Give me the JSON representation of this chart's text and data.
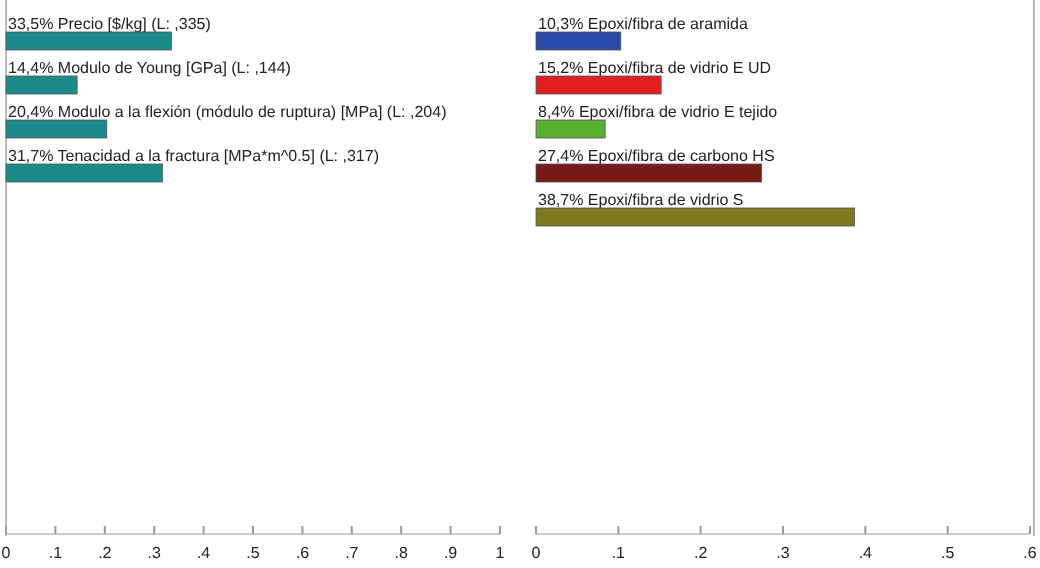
{
  "chart_data": [
    {
      "type": "bar",
      "orientation": "horizontal",
      "categories": [
        null,
        null,
        null,
        null,
        null,
        null,
        null,
        null,
        null,
        null,
        null,
        null
      ],
      "values": [
        0.335,
        0.144,
        0.204,
        0.317,
        null,
        null,
        null,
        null,
        null,
        null,
        null,
        null
      ],
      "value_labels": [
        "33,5% Precio [$/kg] (L: ,335)",
        "14,4% Modulo de Young [GPa] (L: ,144)",
        "20,4% Modulo a la flexión (módulo de ruptura) [MPa] (L: ,204)",
        "31,7% Tenacidad a la fractura [MPa*m^0.5] (L: ,317)",
        null,
        null,
        null,
        null,
        null,
        null,
        null,
        null
      ],
      "color": "#1a8a8a",
      "xlim": [
        0,
        1
      ],
      "xticks": [
        {
          "value": 0,
          "label": "0"
        },
        {
          "value": 0.1,
          "label": ".1"
        },
        {
          "value": 0.2,
          "label": ".2"
        },
        {
          "value": 0.3,
          "label": ".3"
        },
        {
          "value": 0.4,
          "label": ".4"
        },
        {
          "value": 0.5,
          "label": ".5"
        },
        {
          "value": 0.6,
          "label": ".6"
        },
        {
          "value": 0.7,
          "label": ".7"
        },
        {
          "value": 0.8,
          "label": ".8"
        },
        {
          "value": 0.9,
          "label": ".9"
        },
        {
          "value": 1,
          "label": "1"
        }
      ]
    },
    {
      "type": "bar",
      "orientation": "horizontal",
      "categories": [
        null,
        null,
        null,
        null,
        null,
        null,
        null,
        null,
        null,
        null,
        null,
        null
      ],
      "values": [
        0.103,
        0.152,
        0.084,
        0.274,
        0.387,
        null,
        null,
        null,
        null,
        null,
        null,
        null
      ],
      "value_labels": [
        "10,3% Epoxi/fibra de aramida",
        "15,2% Epoxi/fibra de vidrio E UD",
        "8,4% Epoxi/fibra de vidrio E tejido",
        "27,4% Epoxi/fibra de carbono HS",
        "38,7% Epoxi/fibra de vidrio S",
        null,
        null,
        null,
        null,
        null,
        null,
        null
      ],
      "colors": [
        "#2a4aa8",
        "#e02020",
        "#5ab030",
        "#7a1a14",
        "#7a7a20",
        null,
        null,
        null,
        null,
        null,
        null,
        null
      ],
      "xlim": [
        0,
        0.6
      ],
      "xticks": [
        {
          "value": 0,
          "label": "0"
        },
        {
          "value": 0.1,
          "label": ".1"
        },
        {
          "value": 0.2,
          "label": ".2"
        },
        {
          "value": 0.3,
          "label": ".3"
        },
        {
          "value": 0.4,
          "label": ".4"
        },
        {
          "value": 0.5,
          "label": ".5"
        },
        {
          "value": 0.6,
          "label": ".6"
        }
      ]
    }
  ]
}
